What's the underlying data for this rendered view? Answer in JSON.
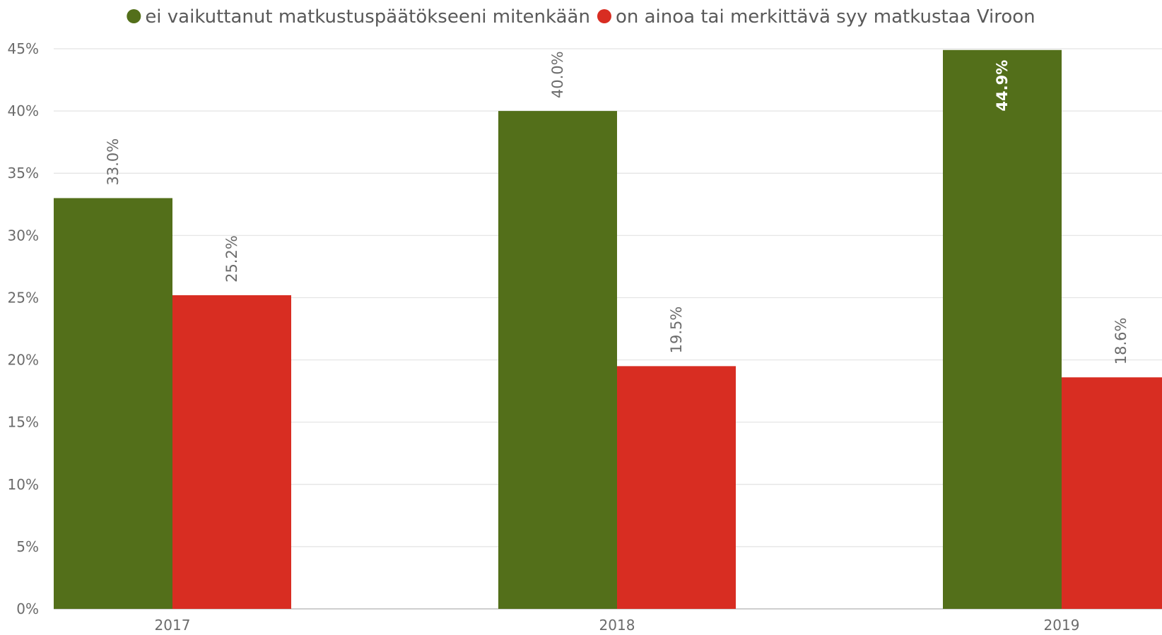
{
  "chart_data": {
    "type": "bar",
    "categories": [
      "2017",
      "2018",
      "2019"
    ],
    "series": [
      {
        "name": "ei vaikuttanut matkustuspäätökseeni mitenkään",
        "color": "#536f1a",
        "values": [
          33.0,
          40.0,
          44.9
        ],
        "labels": [
          "33.0%",
          "40.0%",
          "44.9%"
        ]
      },
      {
        "name": "on ainoa tai merkittävä syy matkustaa Viroon",
        "color": "#d82d22",
        "values": [
          25.2,
          19.5,
          18.6
        ],
        "labels": [
          "25.2%",
          "19.5%",
          "18.6%"
        ]
      }
    ],
    "ylim": [
      0,
      45
    ],
    "yticks": [
      0,
      5,
      10,
      15,
      20,
      25,
      30,
      35,
      40,
      45
    ],
    "ytick_labels": [
      "0%",
      "5%",
      "10%",
      "15%",
      "20%",
      "25%",
      "30%",
      "35%",
      "40%",
      "45%"
    ],
    "xlabel": "",
    "ylabel": "",
    "grid": true,
    "legend_position": "top-center",
    "data_label_orientation": "vertical"
  }
}
